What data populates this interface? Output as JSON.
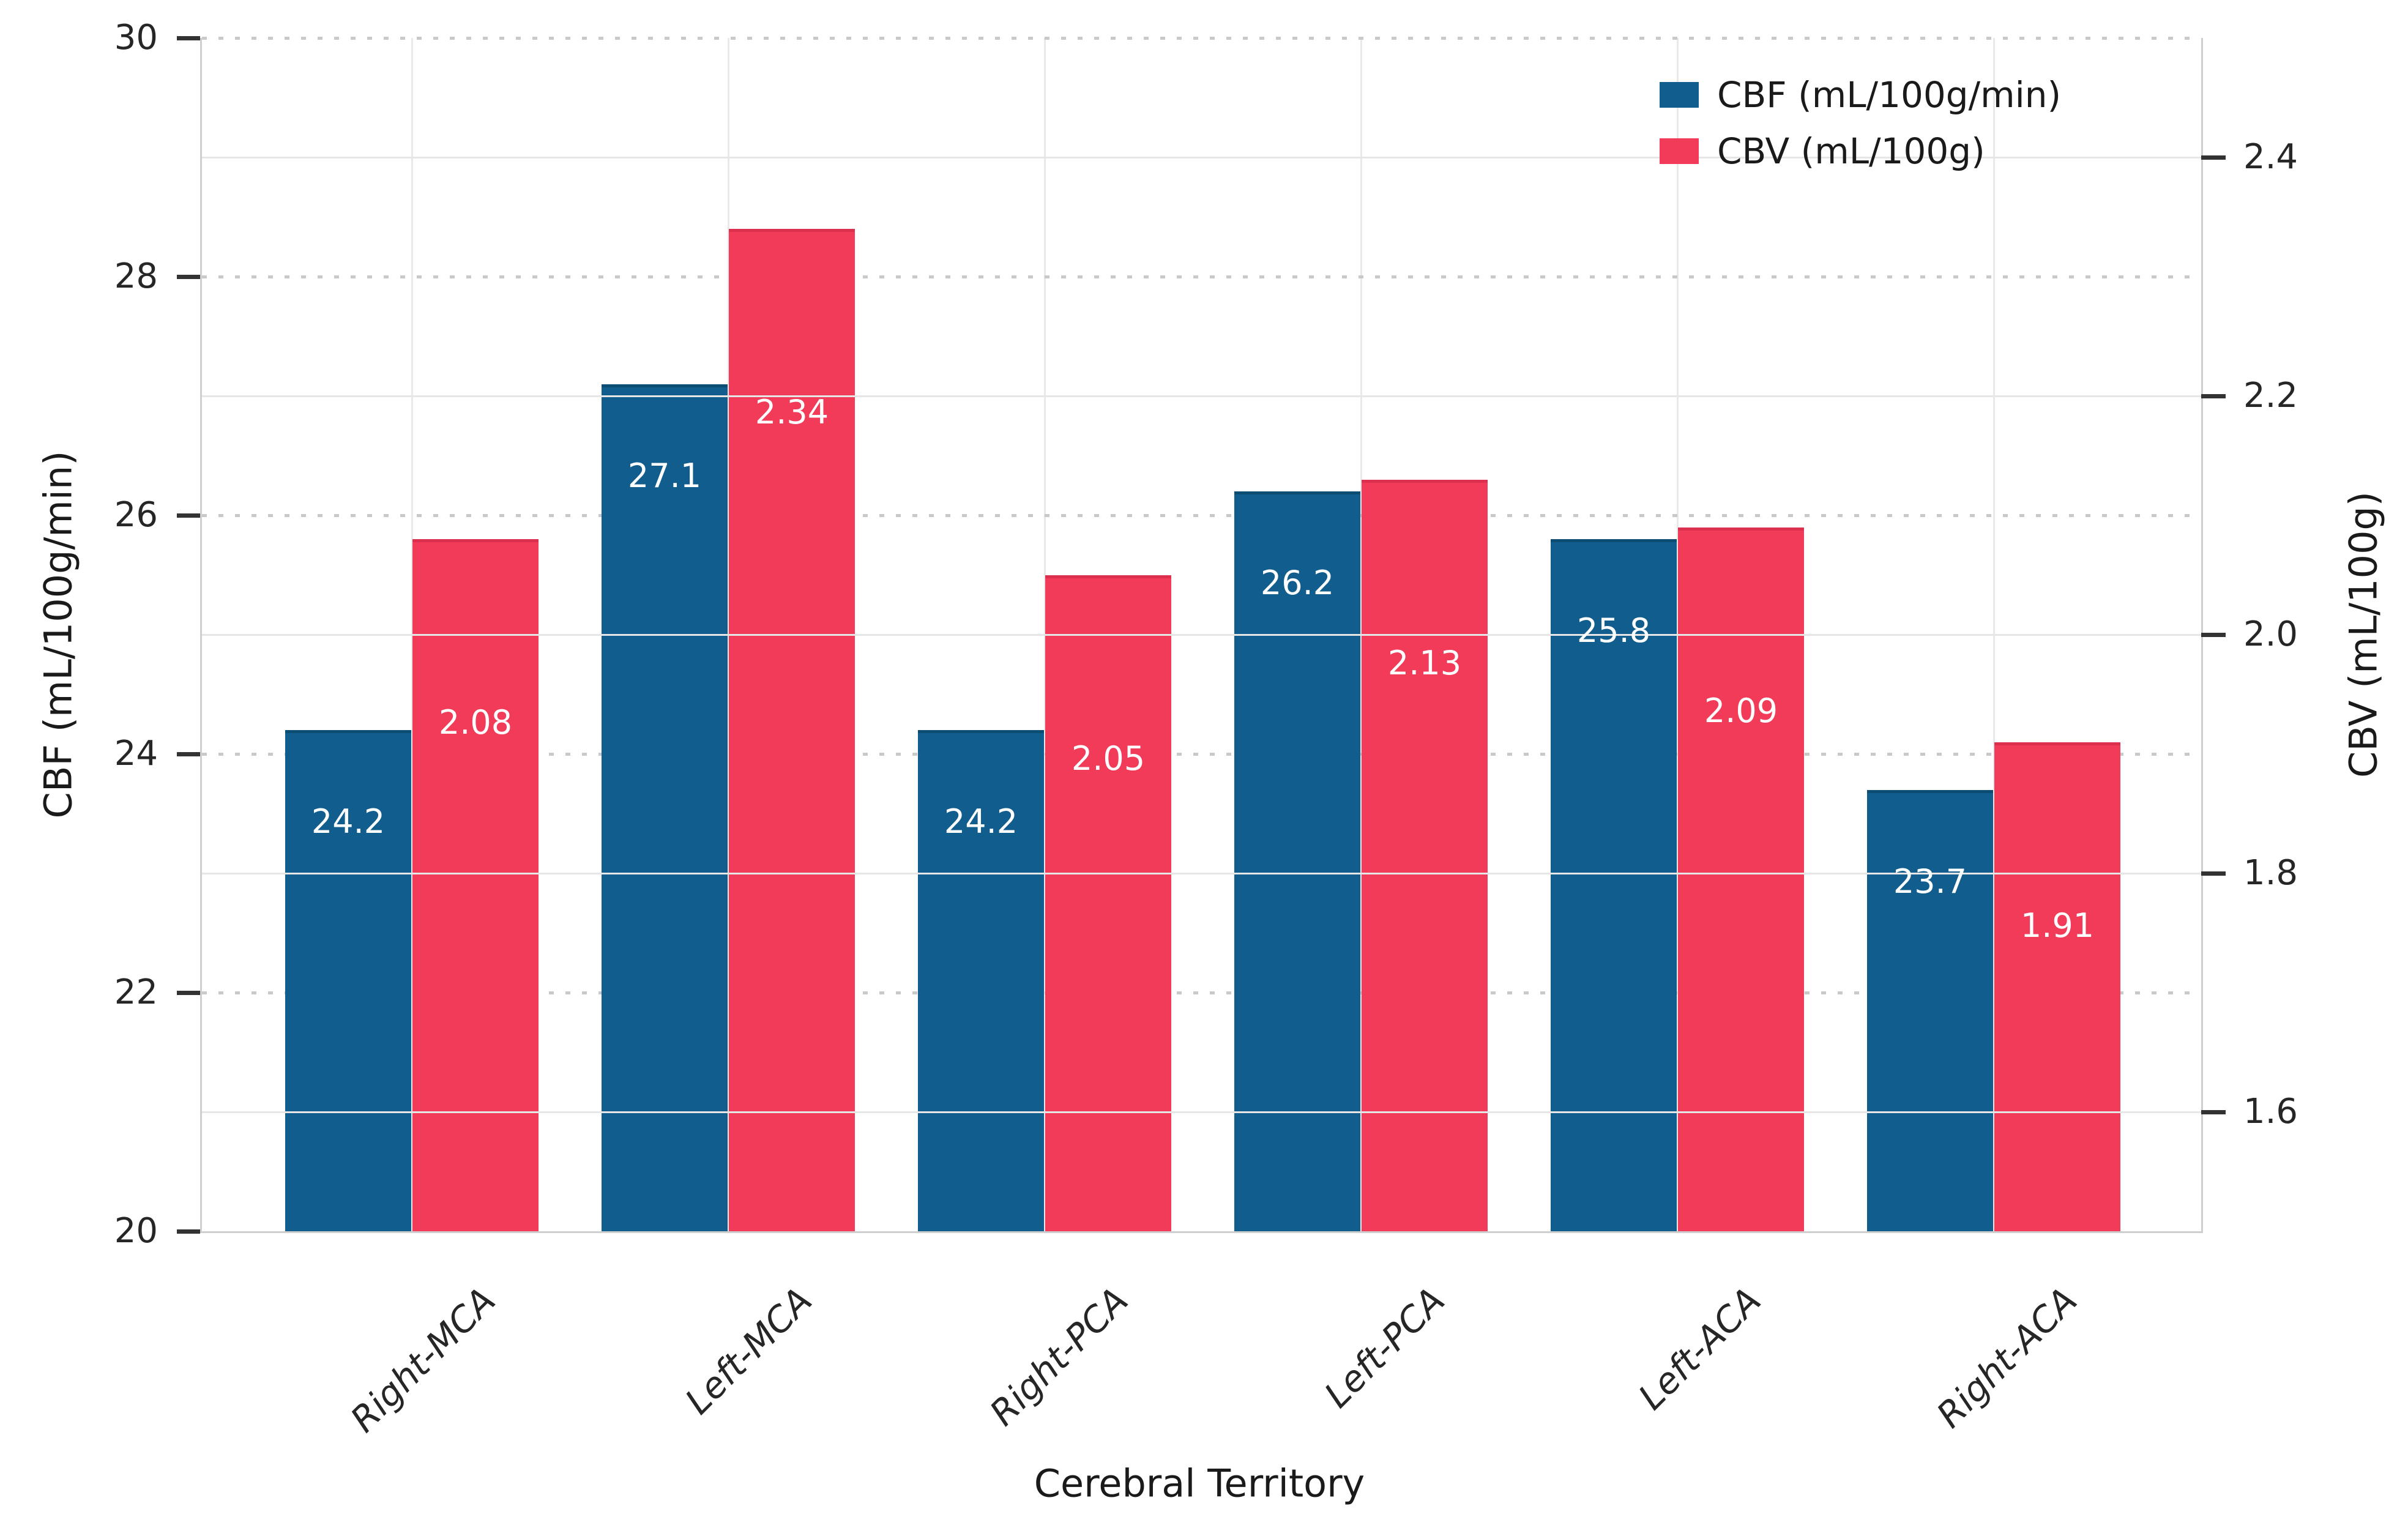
{
  "figure": {
    "background": "#ffffff"
  },
  "chart_data": {
    "type": "bar",
    "title": "",
    "categories": [
      "Right-MCA",
      "Left-MCA",
      "Right-PCA",
      "Left-PCA",
      "Left-ACA",
      "Right-ACA"
    ],
    "series": [
      {
        "name": "CBF (mL/100g/min)",
        "axis": "left",
        "color": "#115e8e",
        "edge_color": "#0c4d74",
        "values": [
          24.2,
          27.1,
          24.2,
          26.2,
          25.8,
          23.7
        ],
        "value_labels": [
          "24.2",
          "27.1",
          "24.2",
          "26.2",
          "25.8",
          "23.7"
        ]
      },
      {
        "name": "CBV (mL/100g)",
        "axis": "right",
        "color": "#f23b58",
        "edge_color": "#dd2f4e",
        "values": [
          2.08,
          2.34,
          2.05,
          2.13,
          2.09,
          1.91
        ],
        "value_labels": [
          "2.08",
          "2.34",
          "2.05",
          "2.13",
          "2.09",
          "1.91"
        ]
      }
    ],
    "xlabel": "Cerebral Territory",
    "ylabel_left": "CBF (mL/100g/min)",
    "ylabel_right": "CBV (mL/100g)",
    "ylim_left": [
      20,
      30
    ],
    "ylim_right": [
      1.5,
      2.5
    ],
    "yticks_left": {
      "values": [
        30,
        28,
        26,
        24,
        22,
        20
      ],
      "labels": [
        "30",
        "28",
        "26",
        "24",
        "22",
        "20"
      ]
    },
    "yticks_right": {
      "values": [
        2.4,
        2.2,
        2.0,
        1.8,
        1.6
      ],
      "labels": [
        "2.4",
        "2.2",
        "2.0",
        "1.8",
        "1.6"
      ]
    },
    "legend": {
      "position": "upper right",
      "entries": [
        "CBF (mL/100g/min)",
        "CBV (mL/100g)"
      ]
    },
    "grid": {
      "horizontal_left_axis": "dotted",
      "horizontal_right_axis": "solid",
      "vertical_at_group_centers": true
    },
    "colors": {
      "dotted_grid": "#c9c9c9",
      "solid_grid": "#e6e6e6",
      "vertical_grid": "#e9e9e9",
      "spine": "#cfcfcf",
      "tick_mark": "#333333",
      "tick_label": "#262626",
      "axis_label": "#1a1a1a",
      "bar_label": "#ffffff"
    }
  }
}
